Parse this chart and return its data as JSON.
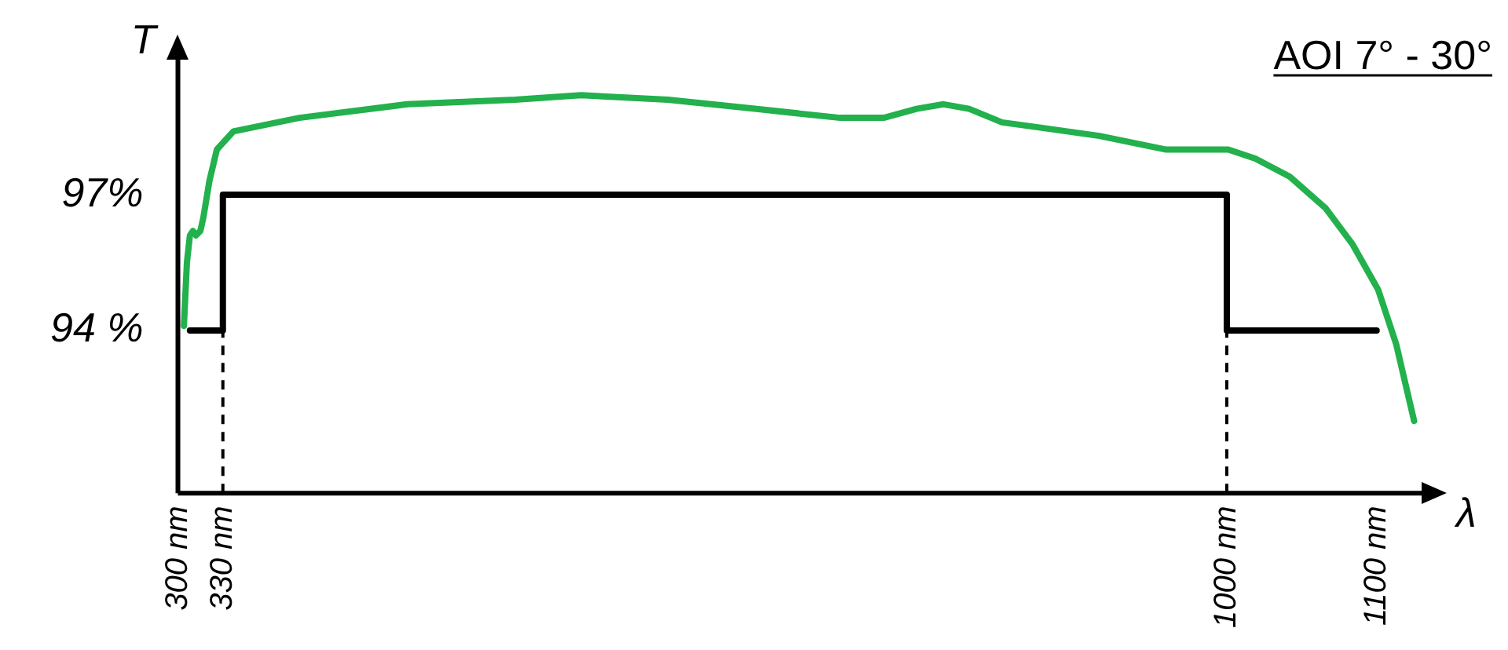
{
  "chart_data": {
    "type": "line",
    "xlabel": "λ",
    "ylabel": "T",
    "annotations": [
      "AOI 7° - 30°"
    ],
    "xlim": [
      300,
      1130
    ],
    "xticks": [
      {
        "value": 300,
        "label": "300 nm"
      },
      {
        "value": 330,
        "label": "330 nm"
      },
      {
        "value": 1000,
        "label": "1000 nm"
      },
      {
        "value": 1100,
        "label": "1100 nm"
      }
    ],
    "ylim": [
      90.4,
      100
    ],
    "yticks": [
      {
        "value": 94,
        "label": "94 %"
      },
      {
        "value": 97,
        "label": "97%"
      }
    ],
    "grid": false,
    "legend": false,
    "marker": "none",
    "ref_lines": [
      {
        "axis": "x",
        "value": 330,
        "line_style": "dashed"
      },
      {
        "axis": "x",
        "value": 1000,
        "line_style": "dashed"
      }
    ],
    "series": [
      {
        "color": "#000000",
        "x": [
          308,
          330,
          330,
          1000,
          1000,
          1100
        ],
        "values": [
          94,
          94,
          97,
          97,
          94,
          94
        ]
      },
      {
        "color": "#22b14c",
        "x": [
          304,
          306,
          308,
          310,
          312,
          315,
          317,
          321,
          326,
          337,
          381,
          453,
          525,
          569,
          627,
          685,
          742,
          771,
          793,
          811,
          828,
          850,
          872,
          915,
          959,
          1001,
          1019,
          1042,
          1066,
          1084,
          1101,
          1113,
          1125
        ],
        "values": [
          94.1,
          95.5,
          96.1,
          96.2,
          96.1,
          96.2,
          96.5,
          97.3,
          98.0,
          98.4,
          98.7,
          99.0,
          99.1,
          99.2,
          99.1,
          98.9,
          98.7,
          98.7,
          98.9,
          99.0,
          98.9,
          98.6,
          98.5,
          98.3,
          98.0,
          98.0,
          97.8,
          97.4,
          96.7,
          95.9,
          94.9,
          93.7,
          92.0
        ]
      }
    ]
  }
}
